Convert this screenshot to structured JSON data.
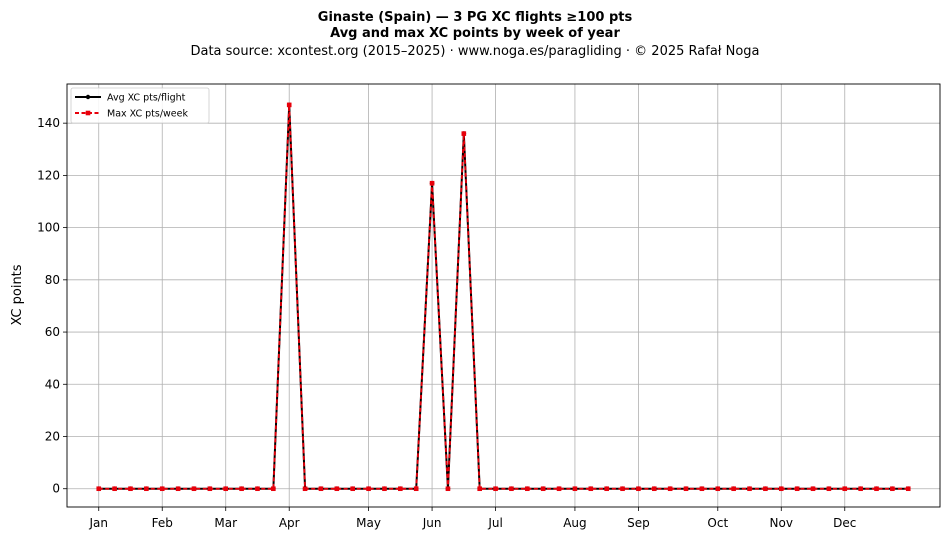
{
  "chart_data": {
    "type": "line",
    "title": "Ginaste (Spain)  —  3 PG XC flights ≥100 pts",
    "subtitle": "Avg and max XC points by week of year",
    "source_line": "Data source: xcontest.org (2015–2025)  ·  www.noga.es/paragliding  ·  © 2025 Rafał Noga",
    "xlabel": "",
    "ylabel": "XC points",
    "ylim": [
      -7,
      155
    ],
    "yticks": [
      0,
      20,
      40,
      60,
      80,
      100,
      120,
      140
    ],
    "xlim": [
      -1,
      54
    ],
    "x_ticks": [
      {
        "label": "Jan",
        "week": 1
      },
      {
        "label": "Feb",
        "week": 5
      },
      {
        "label": "Mar",
        "week": 9
      },
      {
        "label": "Apr",
        "week": 13
      },
      {
        "label": "May",
        "week": 18
      },
      {
        "label": "Jun",
        "week": 22
      },
      {
        "label": "Jul",
        "week": 26
      },
      {
        "label": "Aug",
        "week": 31
      },
      {
        "label": "Sep",
        "week": 35
      },
      {
        "label": "Oct",
        "week": 40
      },
      {
        "label": "Nov",
        "week": 44
      },
      {
        "label": "Dec",
        "week": 48
      }
    ],
    "grid": true,
    "legend_position": "top-left",
    "x": [
      1,
      2,
      3,
      4,
      5,
      6,
      7,
      8,
      9,
      10,
      11,
      12,
      13,
      14,
      15,
      16,
      17,
      18,
      19,
      20,
      21,
      22,
      23,
      24,
      25,
      26,
      27,
      28,
      29,
      30,
      31,
      32,
      33,
      34,
      35,
      36,
      37,
      38,
      39,
      40,
      41,
      42,
      43,
      44,
      45,
      46,
      47,
      48,
      49,
      50,
      51,
      52
    ],
    "series": [
      {
        "name": "Avg XC pts/flight",
        "color": "#000000",
        "values": [
          0,
          0,
          0,
          0,
          0,
          0,
          0,
          0,
          0,
          0,
          0,
          0,
          147,
          0,
          0,
          0,
          0,
          0,
          0,
          0,
          0,
          117,
          0,
          136,
          0,
          0,
          0,
          0,
          0,
          0,
          0,
          0,
          0,
          0,
          0,
          0,
          0,
          0,
          0,
          0,
          0,
          0,
          0,
          0,
          0,
          0,
          0,
          0,
          0,
          0,
          0,
          0
        ]
      },
      {
        "name": "Max XC pts/week",
        "color": "#e8000b",
        "values": [
          0,
          0,
          0,
          0,
          0,
          0,
          0,
          0,
          0,
          0,
          0,
          0,
          147,
          0,
          0,
          0,
          0,
          0,
          0,
          0,
          0,
          117,
          0,
          136,
          0,
          0,
          0,
          0,
          0,
          0,
          0,
          0,
          0,
          0,
          0,
          0,
          0,
          0,
          0,
          0,
          0,
          0,
          0,
          0,
          0,
          0,
          0,
          0,
          0,
          0,
          0,
          0
        ]
      }
    ]
  }
}
